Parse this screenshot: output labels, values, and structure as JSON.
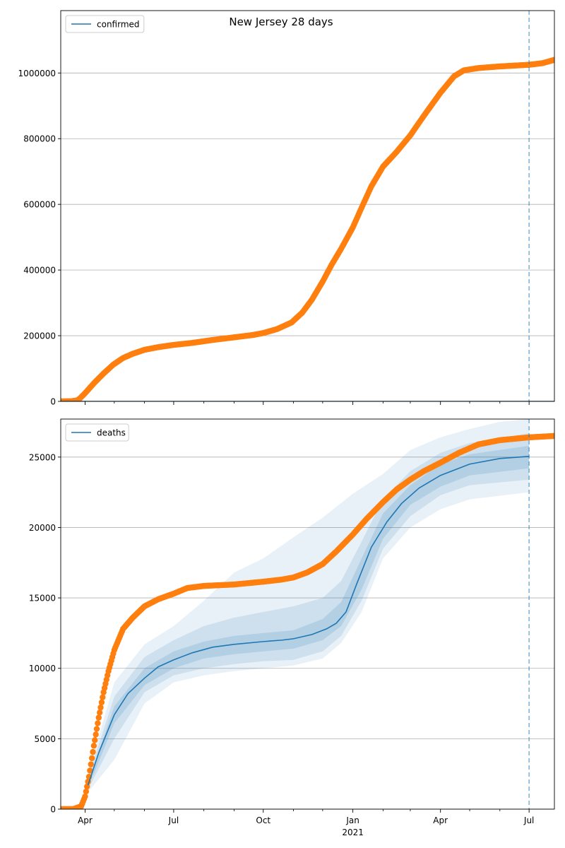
{
  "figure": {
    "title": "New Jersey 28 days"
  },
  "chart_data": [
    {
      "type": "line",
      "panel": "top",
      "legend": {
        "entries": [
          "confirmed"
        ],
        "placement": "upper-left"
      },
      "grid": "y",
      "xlim": [
        "2020-03-07",
        "2021-07-27"
      ],
      "ylim": [
        0,
        1190000
      ],
      "y_ticks": [
        0,
        200000,
        400000,
        600000,
        800000,
        1000000
      ],
      "y_tick_labels": [
        "0",
        "200000",
        "400000",
        "600000",
        "800000",
        "1000000"
      ],
      "x_tick_labels_shown": false,
      "forecast_start": "2021-07-01",
      "observed_series": {
        "color": "#ff7f0e",
        "marker": "circle",
        "points": [
          [
            "2020-03-07",
            0
          ],
          [
            "2020-03-18",
            500
          ],
          [
            "2020-03-24",
            3000
          ],
          [
            "2020-03-27",
            10000
          ],
          [
            "2020-04-01",
            25000
          ],
          [
            "2020-04-10",
            55000
          ],
          [
            "2020-04-20",
            85000
          ],
          [
            "2020-04-30",
            112000
          ],
          [
            "2020-05-10",
            132000
          ],
          [
            "2020-05-20",
            145000
          ],
          [
            "2020-06-01",
            157000
          ],
          [
            "2020-06-15",
            165000
          ],
          [
            "2020-07-01",
            172000
          ],
          [
            "2020-07-20",
            178000
          ],
          [
            "2020-08-10",
            187000
          ],
          [
            "2020-09-01",
            195000
          ],
          [
            "2020-09-20",
            202000
          ],
          [
            "2020-10-01",
            208000
          ],
          [
            "2020-10-15",
            220000
          ],
          [
            "2020-10-30",
            240000
          ],
          [
            "2020-11-10",
            270000
          ],
          [
            "2020-11-20",
            310000
          ],
          [
            "2020-12-01",
            365000
          ],
          [
            "2020-12-10",
            415000
          ],
          [
            "2020-12-20",
            465000
          ],
          [
            "2021-01-01",
            530000
          ],
          [
            "2021-01-10",
            590000
          ],
          [
            "2021-01-20",
            655000
          ],
          [
            "2021-02-01",
            715000
          ],
          [
            "2021-02-15",
            760000
          ],
          [
            "2021-03-01",
            810000
          ],
          [
            "2021-03-15",
            870000
          ],
          [
            "2021-04-01",
            940000
          ],
          [
            "2021-04-15",
            990000
          ],
          [
            "2021-04-25",
            1008000
          ],
          [
            "2021-05-10",
            1015000
          ],
          [
            "2021-06-01",
            1020000
          ],
          [
            "2021-07-01",
            1025000
          ],
          [
            "2021-07-15",
            1030000
          ],
          [
            "2021-07-27",
            1040000
          ]
        ]
      },
      "model_series": {
        "name": "confirmed",
        "color": "#1f77b4",
        "points": [
          [
            "2020-03-07",
            0
          ],
          [
            "2021-07-27",
            0
          ]
        ]
      }
    },
    {
      "type": "line",
      "panel": "bottom",
      "legend": {
        "entries": [
          "deaths"
        ],
        "placement": "upper-left"
      },
      "grid": "y",
      "xlim": [
        "2020-03-07",
        "2021-07-27"
      ],
      "ylim": [
        0,
        27700
      ],
      "y_ticks": [
        0,
        5000,
        10000,
        15000,
        20000,
        25000
      ],
      "y_tick_labels": [
        "0",
        "5000",
        "10000",
        "15000",
        "20000",
        "25000"
      ],
      "x_ticks": [
        "2020-04-01",
        "2020-07-01",
        "2020-10-01",
        "2021-01-01",
        "2021-04-01",
        "2021-07-01"
      ],
      "x_tick_labels": [
        "Apr",
        "Jul",
        "Oct",
        "Jan",
        "Apr",
        "Jul"
      ],
      "x_minor_ticks": [
        "2020-05-01",
        "2020-06-01",
        "2020-08-01",
        "2020-09-01",
        "2020-11-01",
        "2020-12-01",
        "2021-02-01",
        "2021-03-01",
        "2021-05-01",
        "2021-06-01"
      ],
      "x_year_label": "2021",
      "forecast_start": "2021-07-01",
      "observed_series": {
        "color": "#ff7f0e",
        "marker": "circle",
        "points": [
          [
            "2020-03-07",
            0
          ],
          [
            "2020-03-20",
            0
          ],
          [
            "2020-03-28",
            200
          ],
          [
            "2020-04-01",
            900
          ],
          [
            "2020-04-05",
            2300
          ],
          [
            "2020-04-10",
            4500
          ],
          [
            "2020-04-15",
            6500
          ],
          [
            "2020-04-20",
            8300
          ],
          [
            "2020-04-25",
            9800
          ],
          [
            "2020-05-01",
            11300
          ],
          [
            "2020-05-10",
            12800
          ],
          [
            "2020-05-20",
            13600
          ],
          [
            "2020-06-01",
            14400
          ],
          [
            "2020-06-15",
            14900
          ],
          [
            "2020-07-01",
            15300
          ],
          [
            "2020-07-15",
            15700
          ],
          [
            "2020-08-01",
            15850
          ],
          [
            "2020-09-01",
            15950
          ],
          [
            "2020-10-01",
            16150
          ],
          [
            "2020-10-20",
            16300
          ],
          [
            "2020-11-01",
            16450
          ],
          [
            "2020-11-15",
            16800
          ],
          [
            "2020-12-01",
            17400
          ],
          [
            "2020-12-15",
            18300
          ],
          [
            "2021-01-01",
            19500
          ],
          [
            "2021-01-15",
            20600
          ],
          [
            "2021-02-01",
            21800
          ],
          [
            "2021-02-15",
            22700
          ],
          [
            "2021-03-01",
            23400
          ],
          [
            "2021-03-15",
            24000
          ],
          [
            "2021-04-01",
            24600
          ],
          [
            "2021-04-20",
            25300
          ],
          [
            "2021-05-10",
            25900
          ],
          [
            "2021-06-01",
            26200
          ],
          [
            "2021-07-01",
            26400
          ],
          [
            "2021-07-27",
            26500
          ]
        ]
      },
      "model_series": {
        "name": "deaths",
        "color": "#1f77b4",
        "points": [
          [
            "2020-04-04",
            1700
          ],
          [
            "2020-04-15",
            4000
          ],
          [
            "2020-05-01",
            6700
          ],
          [
            "2020-05-15",
            8200
          ],
          [
            "2020-06-01",
            9300
          ],
          [
            "2020-06-15",
            10100
          ],
          [
            "2020-07-01",
            10600
          ],
          [
            "2020-07-20",
            11100
          ],
          [
            "2020-08-10",
            11500
          ],
          [
            "2020-09-01",
            11700
          ],
          [
            "2020-10-01",
            11900
          ],
          [
            "2020-10-20",
            12000
          ],
          [
            "2020-11-01",
            12100
          ],
          [
            "2020-11-20",
            12400
          ],
          [
            "2020-12-05",
            12800
          ],
          [
            "2020-12-15",
            13200
          ],
          [
            "2020-12-25",
            14000
          ],
          [
            "2021-01-05",
            16000
          ],
          [
            "2021-01-20",
            18600
          ],
          [
            "2021-02-05",
            20400
          ],
          [
            "2021-02-20",
            21700
          ],
          [
            "2021-03-10",
            22800
          ],
          [
            "2021-04-01",
            23700
          ],
          [
            "2021-05-01",
            24500
          ],
          [
            "2021-06-01",
            24900
          ],
          [
            "2021-07-01",
            25050
          ]
        ]
      },
      "uncertainty_bands": [
        {
          "level": "outer",
          "opacity": 0.1,
          "upper": [
            [
              "2020-04-04",
              2500
            ],
            [
              "2020-05-01",
              9000
            ],
            [
              "2020-06-01",
              11700
            ],
            [
              "2020-07-01",
              13000
            ],
            [
              "2020-08-01",
              14800
            ],
            [
              "2020-09-01",
              16800
            ],
            [
              "2020-10-01",
              17800
            ],
            [
              "2020-11-01",
              19300
            ],
            [
              "2020-12-01",
              20700
            ],
            [
              "2021-01-01",
              22400
            ],
            [
              "2021-02-01",
              23800
            ],
            [
              "2021-03-01",
              25500
            ],
            [
              "2021-04-01",
              26400
            ],
            [
              "2021-05-01",
              27000
            ],
            [
              "2021-06-01",
              27500
            ],
            [
              "2021-07-01",
              27700
            ]
          ],
          "lower": [
            [
              "2020-04-04",
              1200
            ],
            [
              "2020-05-01",
              3500
            ],
            [
              "2020-06-01",
              7500
            ],
            [
              "2020-07-01",
              9000
            ],
            [
              "2020-08-01",
              9500
            ],
            [
              "2020-09-01",
              9800
            ],
            [
              "2020-10-01",
              10000
            ],
            [
              "2020-11-01",
              10200
            ],
            [
              "2020-12-01",
              10700
            ],
            [
              "2020-12-20",
              11800
            ],
            [
              "2021-01-10",
              14000
            ],
            [
              "2021-02-01",
              17800
            ],
            [
              "2021-03-01",
              20000
            ],
            [
              "2021-04-01",
              21300
            ],
            [
              "2021-05-01",
              22000
            ],
            [
              "2021-07-01",
              22500
            ]
          ]
        },
        {
          "level": "middle",
          "opacity": 0.13,
          "upper": [
            [
              "2020-04-04",
              2200
            ],
            [
              "2020-05-01",
              8000
            ],
            [
              "2020-06-01",
              10800
            ],
            [
              "2020-07-01",
              12000
            ],
            [
              "2020-08-01",
              13000
            ],
            [
              "2020-09-01",
              13600
            ],
            [
              "2020-10-01",
              14000
            ],
            [
              "2020-11-01",
              14400
            ],
            [
              "2020-12-01",
              15000
            ],
            [
              "2020-12-20",
              16200
            ],
            [
              "2021-01-10",
              19000
            ],
            [
              "2021-02-01",
              22000
            ],
            [
              "2021-03-01",
              24000
            ],
            [
              "2021-04-01",
              25300
            ],
            [
              "2021-05-01",
              26000
            ],
            [
              "2021-07-01",
              26700
            ]
          ],
          "lower": [
            [
              "2020-04-04",
              1400
            ],
            [
              "2020-05-01",
              5000
            ],
            [
              "2020-06-01",
              8300
            ],
            [
              "2020-07-01",
              9500
            ],
            [
              "2020-08-01",
              10000
            ],
            [
              "2020-09-01",
              10300
            ],
            [
              "2020-10-01",
              10500
            ],
            [
              "2020-11-01",
              10600
            ],
            [
              "2020-12-01",
              11200
            ],
            [
              "2020-12-20",
              12300
            ],
            [
              "2021-01-10",
              14800
            ],
            [
              "2021-02-01",
              18500
            ],
            [
              "2021-03-01",
              20800
            ],
            [
              "2021-04-01",
              22300
            ],
            [
              "2021-05-01",
              23000
            ],
            [
              "2021-07-01",
              23400
            ]
          ]
        },
        {
          "level": "inner",
          "opacity": 0.16,
          "upper": [
            [
              "2020-04-04",
              1900
            ],
            [
              "2020-05-01",
              7300
            ],
            [
              "2020-06-01",
              10000
            ],
            [
              "2020-07-01",
              11200
            ],
            [
              "2020-08-01",
              11900
            ],
            [
              "2020-09-01",
              12300
            ],
            [
              "2020-10-01",
              12500
            ],
            [
              "2020-11-01",
              12700
            ],
            [
              "2020-12-01",
              13500
            ],
            [
              "2020-12-20",
              14700
            ],
            [
              "2021-01-10",
              17800
            ],
            [
              "2021-02-01",
              21000
            ],
            [
              "2021-03-01",
              23000
            ],
            [
              "2021-04-01",
              24500
            ],
            [
              "2021-05-01",
              25200
            ],
            [
              "2021-07-01",
              25800
            ]
          ],
          "lower": [
            [
              "2020-04-04",
              1500
            ],
            [
              "2020-05-01",
              6100
            ],
            [
              "2020-06-01",
              8800
            ],
            [
              "2020-07-01",
              10000
            ],
            [
              "2020-08-01",
              10700
            ],
            [
              "2020-09-01",
              11000
            ],
            [
              "2020-10-01",
              11200
            ],
            [
              "2020-11-01",
              11400
            ],
            [
              "2020-12-01",
              12000
            ],
            [
              "2020-12-20",
              13000
            ],
            [
              "2021-01-10",
              15600
            ],
            [
              "2021-02-01",
              19200
            ],
            [
              "2021-03-01",
              21600
            ],
            [
              "2021-04-01",
              22900
            ],
            [
              "2021-05-01",
              23700
            ],
            [
              "2021-07-01",
              24200
            ]
          ]
        }
      ]
    }
  ]
}
